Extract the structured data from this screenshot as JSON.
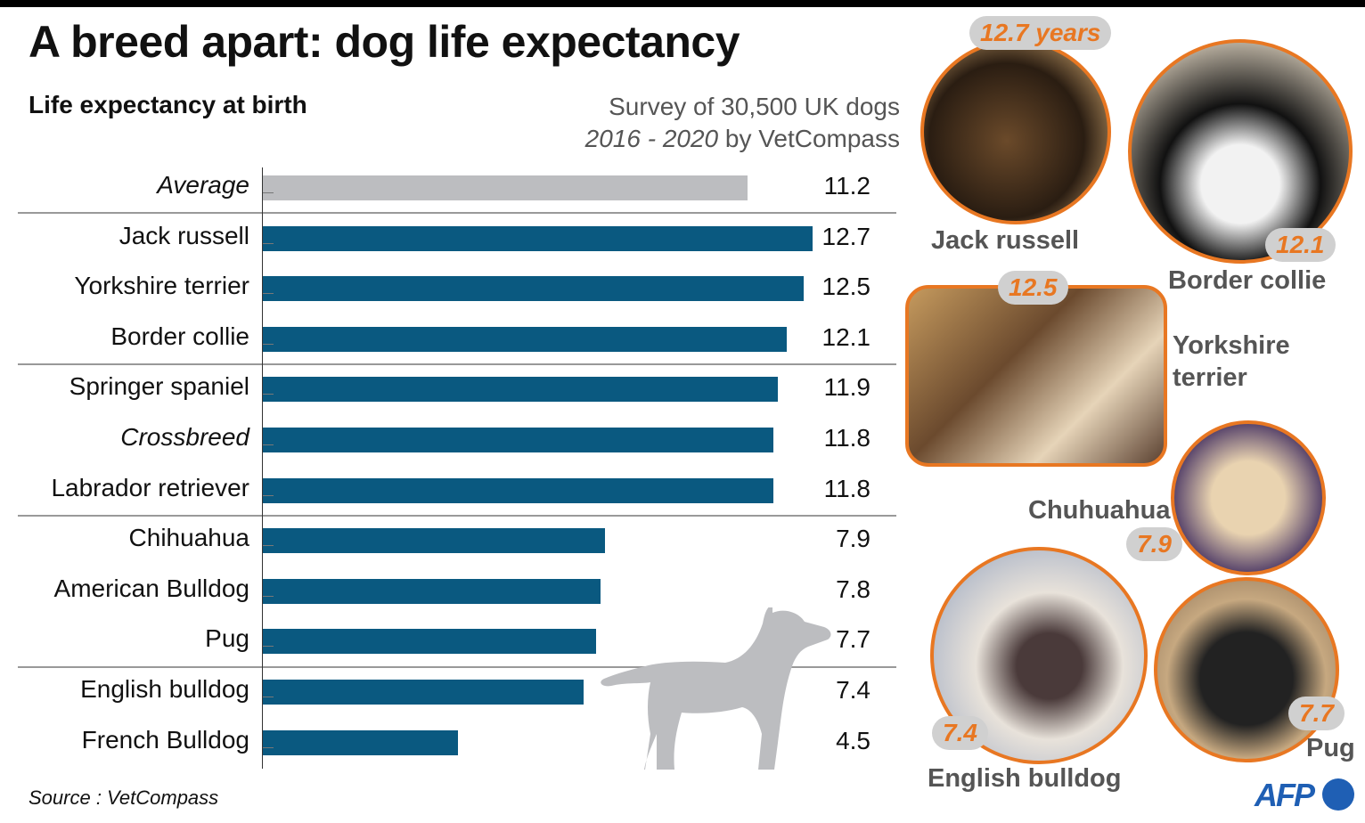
{
  "header": {
    "title": "A breed apart: dog life expectancy",
    "subtitle": "Life expectancy at birth",
    "survey_line1": "Survey of 30,500 UK dogs",
    "survey_years": "2016 - 2020",
    "survey_by": " by VetCompass"
  },
  "source": "Source : VetCompass",
  "logo": "AFP",
  "colors": {
    "bar": "#0a5980",
    "average": "#bcbdc0",
    "accent": "#e87722",
    "logo": "#1f5fb4"
  },
  "chart_data": {
    "type": "bar",
    "orientation": "horizontal",
    "title": "A breed apart: dog life expectancy",
    "xlabel": "Life expectancy at birth (years)",
    "xlim": [
      0,
      13
    ],
    "categories": [
      "Average",
      "Jack russell",
      "Yorkshire terrier",
      "Border collie",
      "Springer spaniel",
      "Crossbreed",
      "Labrador retriever",
      "Chihuahua",
      "American Bulldog",
      "Pug",
      "English bulldog",
      "French Bulldog"
    ],
    "values": [
      11.2,
      12.7,
      12.5,
      12.1,
      11.9,
      11.8,
      11.8,
      7.9,
      7.8,
      7.7,
      7.4,
      4.5
    ],
    "value_labels": [
      "11.2",
      "12.7",
      "12.5",
      "12.1",
      "11.9",
      "11.8",
      "11.8",
      "7.9",
      "7.8",
      "7.7",
      "7.4",
      "4.5"
    ],
    "italic": [
      true,
      false,
      false,
      false,
      false,
      true,
      false,
      false,
      false,
      false,
      false,
      false
    ],
    "highlight": [
      "average",
      "breed",
      "breed",
      "breed",
      "breed",
      "breed",
      "breed",
      "breed",
      "breed",
      "breed",
      "breed",
      "breed"
    ],
    "group_separators_after": [
      0,
      3,
      6,
      9
    ]
  },
  "photos": [
    {
      "name": "Jack russell",
      "badge": "12.7 years"
    },
    {
      "name": "Border collie",
      "badge": "12.1"
    },
    {
      "name": "Yorkshire terrier",
      "name2": "terrier",
      "name1": "Yorkshire",
      "badge": "12.5"
    },
    {
      "name": "Chuhuahua",
      "badge": "7.9"
    },
    {
      "name": "English bulldog",
      "badge": "7.4"
    },
    {
      "name": "Pug",
      "badge": "7.7"
    }
  ]
}
